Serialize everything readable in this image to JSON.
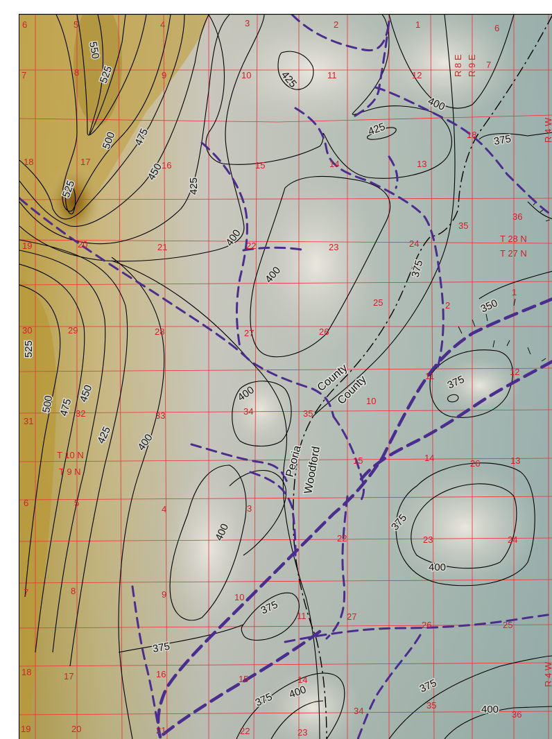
{
  "map": {
    "contour_labels": [
      "550",
      "525",
      "500",
      "475",
      "450",
      "425",
      "400",
      "375",
      "350"
    ],
    "counties": {
      "north": "Peoria",
      "south": "Woodford",
      "word": "County"
    },
    "township_labels": {
      "t28n": "T 28 N",
      "t27n": "T 27 N",
      "t10n": "T 10 N",
      "t9n": "T 9 N",
      "r8e": "R 8 E",
      "r9e": "R 9 E",
      "r4w": "R 4 W"
    },
    "sections": [
      "1",
      "2",
      "3",
      "4",
      "5",
      "6",
      "7",
      "8",
      "9",
      "10",
      "11",
      "12",
      "13",
      "14",
      "15",
      "16",
      "17",
      "18",
      "19",
      "20",
      "21",
      "22",
      "23",
      "24",
      "25",
      "26",
      "27",
      "28",
      "29",
      "30",
      "31",
      "32",
      "33",
      "34",
      "35",
      "36"
    ],
    "colors": {
      "contour": "#000000",
      "grid": "#e8303a",
      "section_text": "#d0202a",
      "valley_line": "#4a2d8c",
      "upland": "#b89a3a",
      "lowland": "#9fb3ad"
    }
  }
}
